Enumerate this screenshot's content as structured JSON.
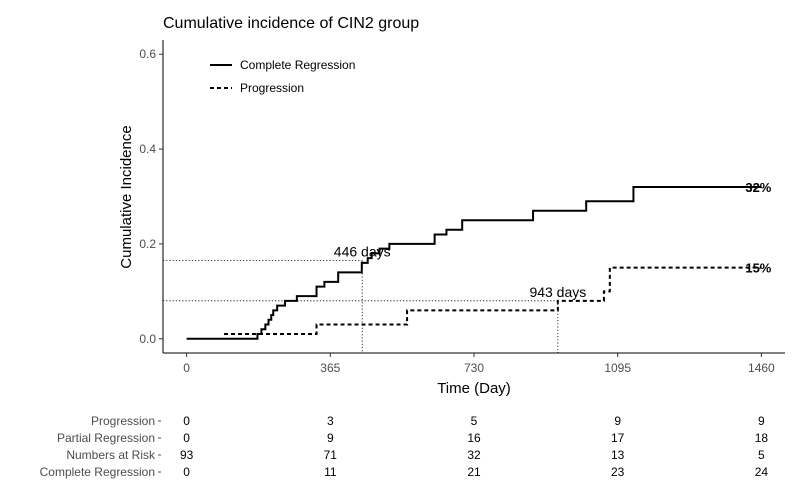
{
  "chart_data": {
    "type": "line",
    "title": "Cumulative incidence of CIN2 group",
    "xlabel": "Time (Day)",
    "ylabel": "Cumulative Incidence",
    "xlim": [
      -60,
      1520
    ],
    "ylim": [
      -0.03,
      0.63
    ],
    "x_ticks": [
      0,
      365,
      730,
      1095,
      1460
    ],
    "y_ticks": [
      0.0,
      0.2,
      0.4,
      0.6
    ],
    "x_tick_labels": [
      "0",
      "365",
      "730",
      "1095",
      "1460"
    ],
    "y_tick_labels": [
      "0.0",
      "0.2",
      "0.4",
      "0.6"
    ],
    "grid": false,
    "legend_position": "top-left",
    "series": [
      {
        "name": "Complete Regression",
        "style": "solid",
        "x": [
          0,
          180,
          190,
          200,
          208,
          215,
          220,
          230,
          250,
          280,
          330,
          350,
          385,
          445,
          460,
          470,
          490,
          515,
          555,
          630,
          660,
          700,
          880,
          1015,
          1135,
          1460
        ],
        "y": [
          0,
          0.01,
          0.02,
          0.03,
          0.04,
          0.05,
          0.06,
          0.07,
          0.08,
          0.09,
          0.11,
          0.12,
          0.14,
          0.16,
          0.17,
          0.18,
          0.19,
          0.2,
          0.2,
          0.22,
          0.23,
          0.25,
          0.27,
          0.29,
          0.32,
          0.32
        ],
        "end_label": "32%"
      },
      {
        "name": "Progression",
        "style": "dashed",
        "x": [
          95,
          180,
          330,
          445,
          560,
          943,
          1060,
          1075,
          1460
        ],
        "y": [
          0.01,
          0.01,
          0.03,
          0.03,
          0.06,
          0.08,
          0.1,
          0.15,
          0.15
        ],
        "end_label": "15%"
      }
    ],
    "annotations": [
      {
        "text": "446 days",
        "x": 446,
        "y": 0.165
      },
      {
        "text": "943 days",
        "x": 943,
        "y": 0.08
      }
    ],
    "risk_table": {
      "times": [
        0,
        365,
        730,
        1095,
        1460
      ],
      "rows": [
        {
          "label": "Progression",
          "values": [
            "0",
            "3",
            "5",
            "9",
            "9"
          ]
        },
        {
          "label": "Partial Regression",
          "values": [
            "0",
            "9",
            "16",
            "17",
            "18"
          ]
        },
        {
          "label": "Numbers at Risk",
          "values": [
            "93",
            "71",
            "32",
            "13",
            "5"
          ]
        },
        {
          "label": "Complete Regression",
          "values": [
            "0",
            "11",
            "21",
            "23",
            "24"
          ]
        }
      ]
    }
  }
}
